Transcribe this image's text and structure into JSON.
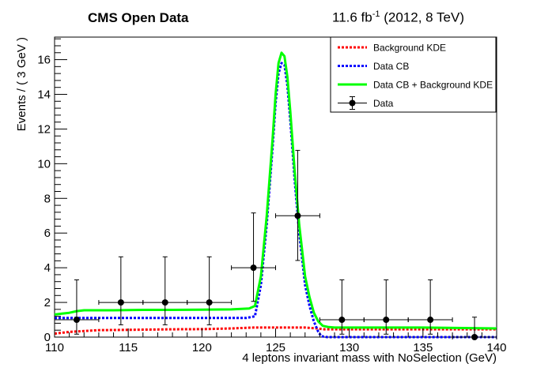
{
  "header": {
    "left_title": "CMS Open Data",
    "right_title_prefix": "11.6 fb",
    "right_title_sup": "-1",
    "right_title_suffix": " (2012, 8 TeV)"
  },
  "chart_data": {
    "type": "line",
    "title": "",
    "xlabel": "4 leptons invariant mass with NoSelection (GeV)",
    "ylabel": "Events / ( 3 GeV )",
    "xlim": [
      110,
      140
    ],
    "ylim": [
      0,
      17.3
    ],
    "x_ticks": [
      110,
      115,
      120,
      125,
      130,
      135,
      140
    ],
    "y_ticks": [
      0,
      2,
      4,
      6,
      8,
      10,
      12,
      14,
      16
    ],
    "grid": false,
    "legend_position": "top-right",
    "legend": [
      "Background KDE",
      "Data CB",
      "Data CB + Background KDE",
      "Data"
    ],
    "colors": {
      "background_kde": "#ff0000",
      "data_cb": "#0000ff",
      "total": "#00ff00",
      "data": "#000000"
    },
    "series": [
      {
        "name": "Background KDE",
        "style": "dotted",
        "x": [
          110,
          111,
          112,
          113,
          115,
          118,
          120,
          122,
          123.5,
          125,
          127,
          127.8,
          128.3,
          130,
          135,
          140
        ],
        "y": [
          0.2,
          0.3,
          0.35,
          0.4,
          0.42,
          0.45,
          0.46,
          0.5,
          0.55,
          0.55,
          0.55,
          0.5,
          0.45,
          0.45,
          0.45,
          0.45
        ]
      },
      {
        "name": "Data CB",
        "style": "dotted",
        "x": [
          110,
          111,
          113,
          115,
          118,
          121,
          123,
          123.6,
          124,
          124.4,
          124.8,
          125.0,
          125.2,
          125.4,
          125.6,
          125.8,
          126.0,
          126.3,
          126.6,
          127.0,
          127.3,
          127.6,
          127.9,
          128.1,
          128.5,
          129,
          130,
          135,
          140
        ],
        "y": [
          1.1,
          1.1,
          1.1,
          1.1,
          1.1,
          1.1,
          1.1,
          1.2,
          3.0,
          6.5,
          11.0,
          13.5,
          15.2,
          15.8,
          15.7,
          14.5,
          12.5,
          9.0,
          6.0,
          3.0,
          1.8,
          0.9,
          0.3,
          0.05,
          0,
          0,
          0,
          0,
          0
        ]
      },
      {
        "name": "Data CB + Background KDE",
        "style": "solid",
        "x": [
          110,
          110.5,
          111,
          111.5,
          112,
          113,
          114,
          116,
          118,
          120,
          122,
          123.2,
          123.6,
          124,
          124.4,
          124.8,
          125.0,
          125.2,
          125.4,
          125.6,
          125.8,
          126.0,
          126.3,
          126.6,
          127.0,
          127.3,
          127.6,
          127.9,
          128.2,
          128.6,
          129,
          130,
          135,
          140
        ],
        "y": [
          1.3,
          1.35,
          1.4,
          1.5,
          1.55,
          1.55,
          1.55,
          1.57,
          1.57,
          1.58,
          1.6,
          1.65,
          1.8,
          3.5,
          7.0,
          11.5,
          14.0,
          15.8,
          16.4,
          16.2,
          15.0,
          13.0,
          9.5,
          6.5,
          3.5,
          2.3,
          1.4,
          0.9,
          0.65,
          0.58,
          0.55,
          0.55,
          0.55,
          0.5
        ]
      }
    ],
    "data_points": {
      "name": "Data",
      "x": [
        111.5,
        114.5,
        117.5,
        120.5,
        123.5,
        126.5,
        129.5,
        132.5,
        135.5,
        138.5
      ],
      "xerr": [
        1.5,
        1.5,
        1.5,
        1.5,
        1.5,
        1.5,
        1.5,
        1.5,
        1.5,
        1.5
      ],
      "y": [
        1,
        2,
        2,
        2,
        4,
        7,
        1,
        1,
        1,
        0
      ],
      "yerr_low": [
        0.83,
        1.29,
        1.29,
        1.29,
        1.94,
        2.58,
        0.83,
        0.83,
        0.83,
        0
      ],
      "yerr_high": [
        2.3,
        2.63,
        2.63,
        2.63,
        3.16,
        3.77,
        2.3,
        2.3,
        2.3,
        1.15
      ]
    }
  }
}
